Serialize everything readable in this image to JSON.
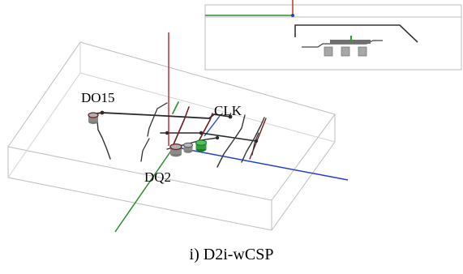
{
  "labels": {
    "do15": "DO15",
    "clk": "CLK",
    "dq2": "DQ2"
  },
  "caption": "i) D2i-wCSP",
  "colors": {
    "box_edge": "#bdbdbd",
    "axis_x": "#1e3fd6",
    "axis_y": "#2e8b2e",
    "axis_z": "#c83030",
    "trace": "#2a2a2a",
    "trace_red": "#6e1e1e",
    "trace_green": "#2e9a3a",
    "via_gray": "#8a8a8a",
    "pad_gray": "#a7a7a7"
  }
}
